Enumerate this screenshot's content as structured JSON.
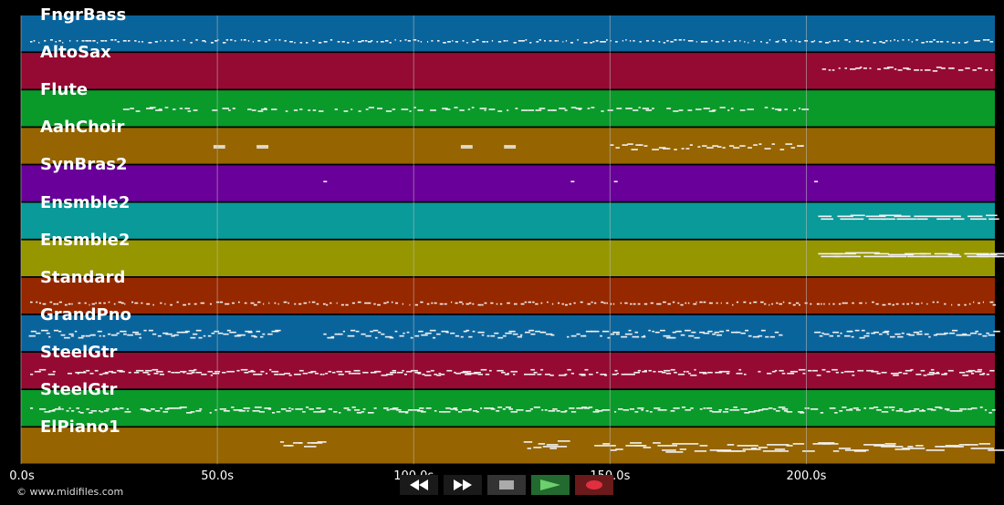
{
  "tracks": [
    {
      "name": "FngrBass",
      "color": "#0a649c",
      "notes": "dense_low"
    },
    {
      "name": "AltoSax",
      "color": "#950a32",
      "notes": "late_mid"
    },
    {
      "name": "Flute",
      "color": "#0a9a2a",
      "notes": "early_mid"
    },
    {
      "name": "AahChoir",
      "color": "#966400",
      "notes": "sparse_mid"
    },
    {
      "name": "SynBras2",
      "color": "#6a009a",
      "notes": "points"
    },
    {
      "name": "Ensmble2",
      "color": "#0a9a9a",
      "notes": "late_high"
    },
    {
      "name": "Ensmble2",
      "color": "#969600",
      "notes": "late_high"
    },
    {
      "name": "Standard",
      "color": "#962800",
      "notes": "dense_low"
    },
    {
      "name": "GrandPno",
      "color": "#0a649c",
      "notes": "phrases"
    },
    {
      "name": "SteelGtr",
      "color": "#950a32",
      "notes": "dense_mid"
    },
    {
      "name": "SteelGtr",
      "color": "#0a9a2a",
      "notes": "dense_mid"
    },
    {
      "name": "ElPiano1",
      "color": "#966400",
      "notes": "sparse_low"
    }
  ],
  "timeline": {
    "ticks": [
      "0.0s",
      "50.0s",
      "100.0s",
      "150.0s",
      "200.0s"
    ],
    "tick_seconds": [
      0,
      50,
      100,
      150,
      200
    ],
    "visible_range_seconds": [
      0,
      248
    ]
  },
  "transport": {
    "rewind": "rewind-icon",
    "fast_forward": "fast-forward-icon",
    "stop": "stop-icon",
    "play": "play-icon",
    "record": "record-icon"
  },
  "copyright": "© www.midifiles.com",
  "colors": {
    "background": "#000000",
    "grid": "#bbbbbb",
    "play_button": "#2a8a3a",
    "record_button": "#c02030"
  }
}
